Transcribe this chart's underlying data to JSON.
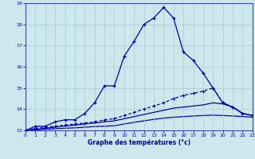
{
  "xlabel": "Graphe des températures (°c)",
  "bg_color": "#cce8ec",
  "grid_color": "#aacccc",
  "line_color": "#0000bb",
  "xlim": [
    0,
    23
  ],
  "ylim": [
    13,
    19
  ],
  "yticks": [
    13,
    14,
    15,
    16,
    17,
    18,
    19
  ],
  "xticks": [
    0,
    1,
    2,
    3,
    4,
    5,
    6,
    7,
    8,
    9,
    10,
    11,
    12,
    13,
    14,
    15,
    16,
    17,
    18,
    19,
    20,
    21,
    22,
    23
  ],
  "s1_x": [
    0,
    1,
    2,
    3,
    4,
    5,
    6,
    7,
    8,
    9,
    10,
    11,
    12,
    13,
    14,
    15,
    16,
    17,
    18,
    19,
    20,
    21,
    22,
    23
  ],
  "s1_y": [
    13.0,
    13.2,
    13.2,
    13.4,
    13.5,
    13.5,
    13.8,
    14.3,
    15.1,
    15.1,
    16.5,
    17.2,
    18.0,
    18.3,
    18.8,
    18.3,
    16.7,
    16.3,
    15.7,
    15.0,
    14.3,
    14.1,
    13.8,
    13.7
  ],
  "s2_x": [
    0,
    1,
    2,
    3,
    4,
    5,
    6,
    7,
    8,
    9,
    10,
    11,
    12,
    13,
    14,
    15,
    16,
    17,
    18,
    19,
    20,
    21,
    22,
    23
  ],
  "s2_y": [
    13.0,
    13.1,
    13.15,
    13.2,
    13.25,
    13.3,
    13.35,
    13.4,
    13.5,
    13.55,
    13.7,
    13.85,
    14.0,
    14.15,
    14.3,
    14.5,
    14.65,
    14.75,
    14.85,
    15.0,
    14.3,
    14.1,
    13.8,
    13.7
  ],
  "s3_x": [
    0,
    1,
    2,
    3,
    4,
    5,
    6,
    7,
    8,
    9,
    10,
    11,
    12,
    13,
    14,
    15,
    16,
    17,
    18,
    19,
    20,
    21,
    22,
    23
  ],
  "s3_y": [
    13.0,
    13.05,
    13.1,
    13.15,
    13.2,
    13.25,
    13.3,
    13.35,
    13.4,
    13.45,
    13.55,
    13.65,
    13.75,
    13.85,
    13.95,
    14.05,
    14.1,
    14.15,
    14.2,
    14.3,
    14.25,
    14.1,
    13.8,
    13.7
  ],
  "s4_x": [
    0,
    1,
    2,
    3,
    4,
    5,
    6,
    7,
    8,
    9,
    10,
    11,
    12,
    13,
    14,
    15,
    16,
    17,
    18,
    19,
    20,
    21,
    22,
    23
  ],
  "s4_y": [
    13.0,
    13.02,
    13.05,
    13.08,
    13.1,
    13.12,
    13.15,
    13.18,
    13.2,
    13.22,
    13.3,
    13.38,
    13.45,
    13.52,
    13.58,
    13.62,
    13.65,
    13.68,
    13.7,
    13.72,
    13.7,
    13.68,
    13.65,
    13.62
  ]
}
